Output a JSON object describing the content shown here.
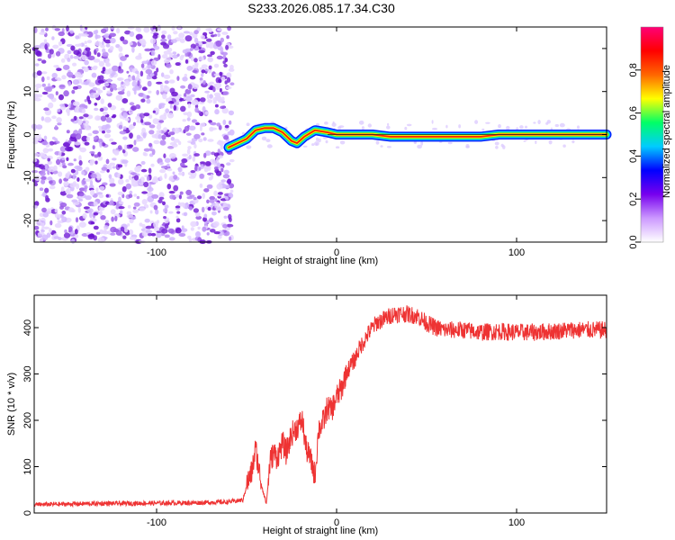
{
  "figure": {
    "title": "S233.2026.085.17.34.C30"
  },
  "chart_data": [
    {
      "type": "heatmap",
      "name": "spectrogram",
      "xlabel": "Height of straight line (km)",
      "ylabel": "Frequency (Hz)",
      "xlim": [
        -168,
        150
      ],
      "ylim": [
        -25,
        25
      ],
      "xticks": [
        -100,
        0,
        100
      ],
      "yticks": [
        -20,
        -10,
        0,
        10,
        20
      ],
      "noise_region_x": [
        -168,
        -58
      ],
      "tone_track": {
        "x": [
          -60,
          -55,
          -50,
          -45,
          -40,
          -35,
          -30,
          -25,
          -22,
          -18,
          -12,
          -5,
          0,
          10,
          20,
          30,
          40,
          50,
          60,
          70,
          80,
          90,
          100,
          110,
          120,
          130,
          140,
          150
        ],
        "freq": [
          -3,
          -2,
          -1,
          1,
          1.5,
          1.5,
          0.5,
          -1.5,
          -2,
          -0.5,
          1,
          0.5,
          0,
          0,
          0,
          -0.5,
          -0.5,
          -0.5,
          -0.5,
          -0.5,
          -0.5,
          0,
          0,
          0,
          0,
          0,
          0,
          0
        ]
      },
      "colorbar": {
        "label": "Normalized spectral amplitude",
        "ticks": [
          0.0,
          0.2,
          0.4,
          0.6,
          0.8
        ],
        "range": [
          0,
          1
        ],
        "colors": [
          "#ffffff",
          "#cc99ff",
          "#7700ee",
          "#0000ff",
          "#00ccff",
          "#00ff66",
          "#ffff00",
          "#ff6600",
          "#ff0000",
          "#ff0077"
        ]
      }
    },
    {
      "type": "line",
      "name": "snr",
      "xlabel": "Height of straight line (km)",
      "ylabel": "SNR (10 * v/v)",
      "xlim": [
        -168,
        150
      ],
      "ylim": [
        0,
        470
      ],
      "xticks": [
        -100,
        0,
        100
      ],
      "yticks": [
        0,
        100,
        200,
        300,
        400
      ],
      "color": "#ee3333",
      "series": [
        {
          "name": "SNR",
          "x": [
            -168,
            -140,
            -110,
            -80,
            -60,
            -52,
            -50,
            -47,
            -45,
            -43,
            -41,
            -39,
            -37,
            -35,
            -33,
            -30,
            -28,
            -25,
            -23,
            -21,
            -19,
            -17,
            -14,
            -12,
            -10,
            -7,
            -5,
            -3,
            0,
            3,
            5,
            8,
            10,
            12,
            15,
            18,
            22,
            27,
            32,
            38,
            45,
            50,
            55,
            60,
            70,
            80,
            90,
            100,
            110,
            120,
            130,
            140,
            150
          ],
          "y": [
            18,
            20,
            21,
            22,
            24,
            28,
            60,
            90,
            140,
            90,
            50,
            20,
            110,
            130,
            120,
            150,
            130,
            170,
            180,
            190,
            200,
            140,
            110,
            80,
            180,
            200,
            230,
            220,
            250,
            270,
            300,
            320,
            330,
            350,
            370,
            390,
            410,
            420,
            430,
            430,
            425,
            410,
            400,
            395,
            395,
            390,
            392,
            390,
            390,
            392,
            395,
            395,
            395
          ]
        }
      ]
    }
  ]
}
